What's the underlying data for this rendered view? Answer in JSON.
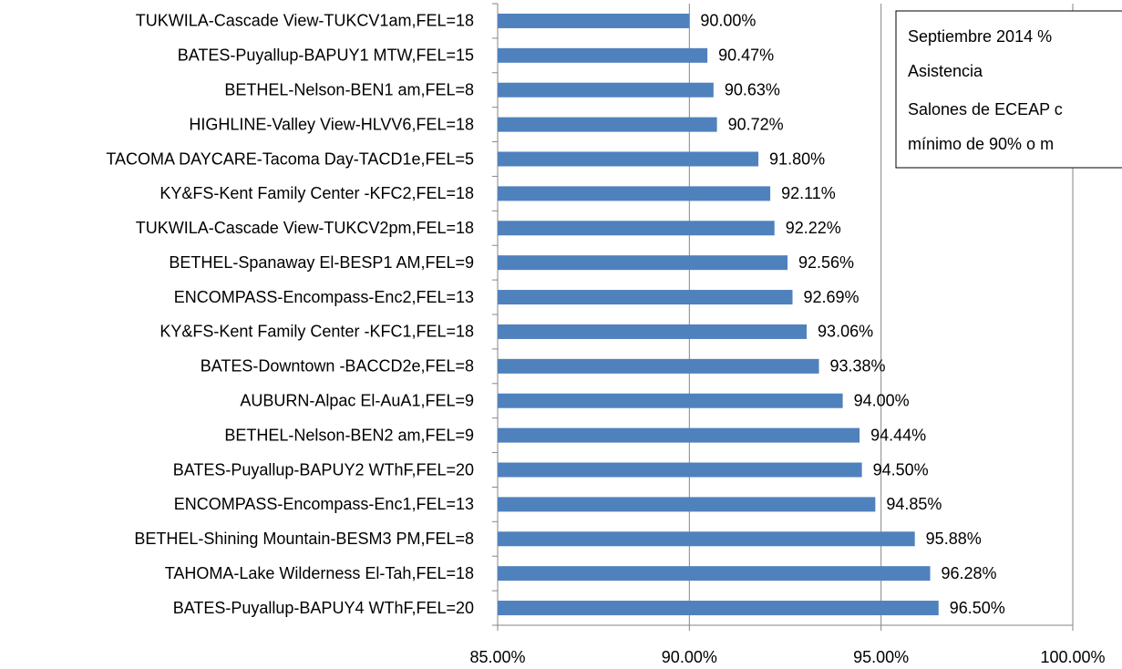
{
  "chart_data": {
    "type": "barh",
    "categories": [
      "TUKWILA-Cascade View-TUKCV1am,FEL=18",
      "BATES-Puyallup-BAPUY1 MTW,FEL=15",
      "BETHEL-Nelson-BEN1 am,FEL=8",
      "HIGHLINE-Valley View-HLVV6,FEL=18",
      "TACOMA DAYCARE-Tacoma Day-TACD1e,FEL=5",
      "KY&FS-Kent Family Center -KFC2,FEL=18",
      "TUKWILA-Cascade View-TUKCV2pm,FEL=18",
      "BETHEL-Spanaway El-BESP1 AM,FEL=9",
      "ENCOMPASS-Encompass-Enc2,FEL=13",
      "KY&FS-Kent Family Center -KFC1,FEL=18",
      "BATES-Downtown -BACCD2e,FEL=8",
      "AUBURN-Alpac El-AuA1,FEL=9",
      "BETHEL-Nelson-BEN2 am,FEL=9",
      "BATES-Puyallup-BAPUY2 WThF,FEL=20",
      "ENCOMPASS-Encompass-Enc1,FEL=13",
      "BETHEL-Shining Mountain-BESM3 PM,FEL=8",
      "TAHOMA-Lake Wilderness El-Tah,FEL=18",
      "BATES-Puyallup-BAPUY4 WThF,FEL=20"
    ],
    "values": [
      90.0,
      90.47,
      90.63,
      90.72,
      91.8,
      92.11,
      92.22,
      92.56,
      92.69,
      93.06,
      93.38,
      94.0,
      94.44,
      94.5,
      94.85,
      95.88,
      96.28,
      96.5
    ],
    "value_labels": [
      "90.00%",
      "90.47%",
      "90.63%",
      "90.72%",
      "91.80%",
      "92.11%",
      "92.22%",
      "92.56%",
      "92.69%",
      "93.06%",
      "93.38%",
      "94.00%",
      "94.44%",
      "94.50%",
      "94.85%",
      "95.88%",
      "96.28%",
      "96.50%"
    ],
    "color": "#4f81bd",
    "xlim": [
      85,
      100
    ],
    "xticks": [
      {
        "value": 85,
        "label": "85.00%"
      },
      {
        "value": 90,
        "label": "90.00%"
      },
      {
        "value": 95,
        "label": "95.00%"
      },
      {
        "value": 100,
        "label": "100.00%"
      }
    ],
    "grid": true,
    "annotation": {
      "lines": [
        "Septiembre 2014 %",
        "Asistencia",
        "Salones de ECEAP c",
        "mínimo de 90% o m"
      ]
    }
  }
}
